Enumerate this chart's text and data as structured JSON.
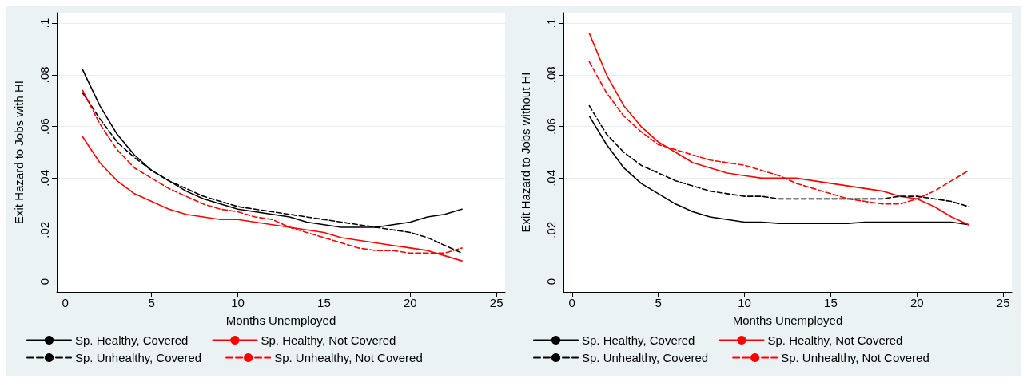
{
  "chart_data": [
    {
      "type": "line",
      "xlabel": "Months Unemployed",
      "ylabel": "Exit Hazard to Jobs with HI",
      "x": [
        1,
        2,
        3,
        4,
        5,
        6,
        7,
        8,
        9,
        10,
        11,
        12,
        13,
        14,
        15,
        16,
        17,
        18,
        19,
        20,
        21,
        22,
        23
      ],
      "xlim": [
        -0.5,
        25.5
      ],
      "xticks": [
        0,
        5,
        10,
        15,
        20,
        25
      ],
      "ylim": [
        -0.004,
        0.104
      ],
      "yticks": [
        0,
        {
          "value": 0.02,
          "label": ".02"
        },
        {
          "value": 0.04,
          "label": ".04"
        },
        {
          "value": 0.06,
          "label": ".06"
        },
        {
          "value": 0.08,
          "label": ".08"
        },
        {
          "value": 0.1,
          "label": ".1"
        }
      ],
      "grid": "y",
      "legend": "bottom",
      "marker": "none",
      "series": [
        {
          "name": "Sp. Healthy, Covered",
          "color": "#000000",
          "line_style": "solid",
          "values": [
            0.082,
            0.068,
            0.057,
            0.049,
            0.043,
            0.039,
            0.035,
            0.032,
            0.03,
            0.028,
            0.027,
            0.026,
            0.025,
            0.023,
            0.022,
            0.021,
            0.021,
            0.021,
            0.022,
            0.023,
            0.025,
            0.026,
            0.028
          ]
        },
        {
          "name": "Sp. Healthy, Not Covered",
          "color": "#ff0000",
          "line_style": "solid",
          "values": [
            0.056,
            0.046,
            0.039,
            0.034,
            0.031,
            0.028,
            0.026,
            0.025,
            0.024,
            0.024,
            0.023,
            0.022,
            0.021,
            0.02,
            0.019,
            0.017,
            0.016,
            0.015,
            0.014,
            0.013,
            0.012,
            0.01,
            0.008
          ]
        },
        {
          "name": "Sp. Unhealthy, Covered",
          "color": "#000000",
          "line_style": "dashed",
          "values": [
            0.073,
            0.063,
            0.054,
            0.048,
            0.043,
            0.039,
            0.036,
            0.033,
            0.031,
            0.029,
            0.028,
            0.027,
            0.026,
            0.025,
            0.024,
            0.023,
            0.022,
            0.021,
            0.02,
            0.019,
            0.017,
            0.014,
            0.011
          ]
        },
        {
          "name": "Sp. Unhealthy, Not Covered",
          "color": "#ff0000",
          "line_style": "dashed",
          "values": [
            0.074,
            0.061,
            0.051,
            0.044,
            0.04,
            0.036,
            0.033,
            0.03,
            0.028,
            0.027,
            0.025,
            0.024,
            0.021,
            0.019,
            0.017,
            0.015,
            0.013,
            0.012,
            0.012,
            0.011,
            0.011,
            0.011,
            0.013
          ]
        }
      ]
    },
    {
      "type": "line",
      "xlabel": "Months Unemployed",
      "ylabel": "Exit Hazard to Jobs without HI",
      "x": [
        1,
        2,
        3,
        4,
        5,
        6,
        7,
        8,
        9,
        10,
        11,
        12,
        13,
        14,
        15,
        16,
        17,
        18,
        19,
        20,
        21,
        22,
        23
      ],
      "xlim": [
        -0.5,
        25.5
      ],
      "xticks": [
        0,
        5,
        10,
        15,
        20,
        25
      ],
      "ylim": [
        -0.004,
        0.104
      ],
      "yticks": [
        0,
        {
          "value": 0.02,
          "label": ".02"
        },
        {
          "value": 0.04,
          "label": ".04"
        },
        {
          "value": 0.06,
          "label": ".06"
        },
        {
          "value": 0.08,
          "label": ".08"
        },
        {
          "value": 0.1,
          "label": ".1"
        }
      ],
      "grid": "y",
      "legend": "bottom",
      "marker": "none",
      "series": [
        {
          "name": "Sp. Healthy, Covered",
          "color": "#000000",
          "line_style": "solid",
          "values": [
            0.064,
            0.053,
            0.044,
            0.038,
            0.034,
            0.03,
            0.027,
            0.025,
            0.024,
            0.023,
            0.023,
            0.0225,
            0.0225,
            0.0225,
            0.0225,
            0.0225,
            0.023,
            0.023,
            0.023,
            0.023,
            0.023,
            0.023,
            0.022
          ]
        },
        {
          "name": "Sp. Healthy, Not Covered",
          "color": "#ff0000",
          "line_style": "solid",
          "values": [
            0.096,
            0.08,
            0.068,
            0.06,
            0.054,
            0.05,
            0.046,
            0.044,
            0.042,
            0.041,
            0.04,
            0.04,
            0.04,
            0.039,
            0.038,
            0.037,
            0.036,
            0.035,
            0.033,
            0.032,
            0.029,
            0.025,
            0.022
          ]
        },
        {
          "name": "Sp. Unhealthy, Covered",
          "color": "#000000",
          "line_style": "dashed",
          "values": [
            0.068,
            0.057,
            0.05,
            0.045,
            0.042,
            0.039,
            0.037,
            0.035,
            0.034,
            0.033,
            0.033,
            0.032,
            0.032,
            0.032,
            0.032,
            0.032,
            0.032,
            0.032,
            0.033,
            0.033,
            0.032,
            0.031,
            0.029
          ]
        },
        {
          "name": "Sp. Unhealthy, Not Covered",
          "color": "#ff0000",
          "line_style": "dashed",
          "values": [
            0.085,
            0.073,
            0.064,
            0.058,
            0.053,
            0.051,
            0.049,
            0.047,
            0.046,
            0.045,
            0.043,
            0.041,
            0.038,
            0.036,
            0.034,
            0.032,
            0.031,
            0.03,
            0.03,
            0.032,
            0.035,
            0.039,
            0.043
          ]
        }
      ]
    }
  ]
}
